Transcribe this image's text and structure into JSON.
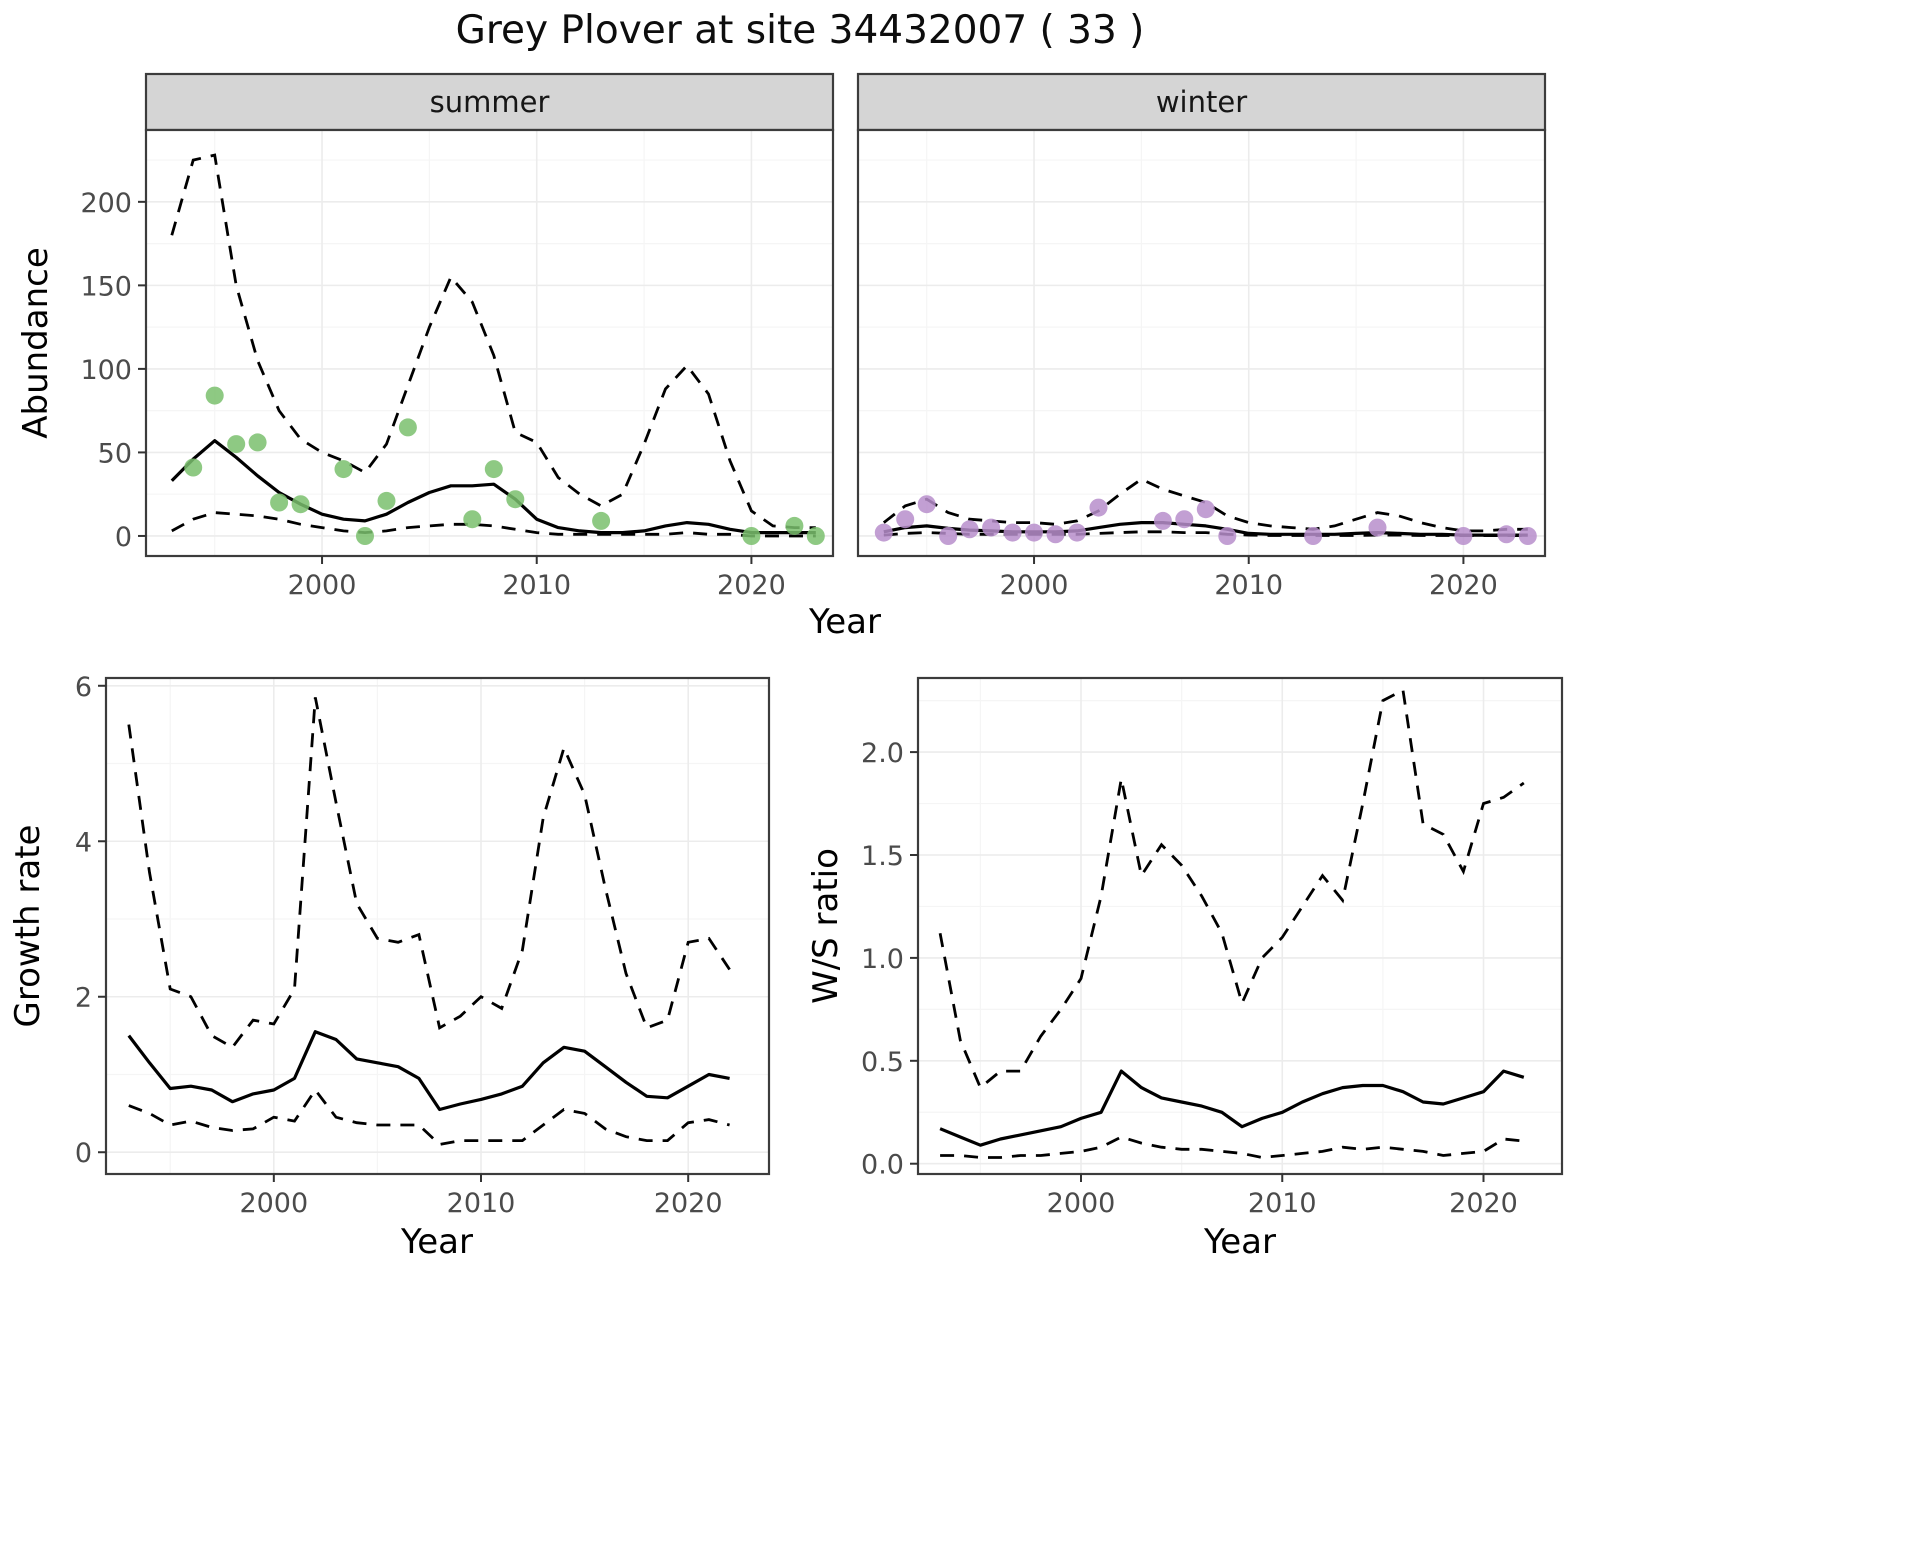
{
  "title": "Grey Plover at site 34432007 ( 33 )",
  "colors": {
    "summer_points": "#7abf6d",
    "winter_points": "#b78ecb",
    "line": "#000000",
    "strip_fill": "#d5d5d5",
    "grid_major": "#ececec",
    "grid_minor": "#f5f5f5",
    "border": "#3c3c3c",
    "tick_text": "#4b4b4b"
  },
  "chart_data": [
    {
      "id": "abundance",
      "type": "line",
      "title": "",
      "xlabel": "Year",
      "ylabel": "Abundance",
      "xlim": [
        1991.8,
        2023.8
      ],
      "ylim": [
        -12,
        243
      ],
      "xticks": [
        2000,
        2010,
        2020
      ],
      "xtick_labels": [
        "2000",
        "2010",
        "2020"
      ],
      "yticks": [
        0,
        50,
        100,
        150,
        200
      ],
      "ytick_labels": [
        "0",
        "50",
        "100",
        "150",
        "200"
      ],
      "grid": true,
      "legend": "none",
      "facets": [
        {
          "label": "summer",
          "point_color": "#7abf6d",
          "years": [
            1993,
            1994,
            1995,
            1996,
            1997,
            1998,
            1999,
            2000,
            2001,
            2002,
            2003,
            2004,
            2005,
            2006,
            2007,
            2008,
            2009,
            2010,
            2011,
            2012,
            2013,
            2014,
            2015,
            2016,
            2017,
            2018,
            2019,
            2020,
            2021,
            2022,
            2023
          ],
          "fit": [
            33,
            46,
            57,
            47,
            36,
            26,
            19,
            13,
            10,
            9,
            13,
            20,
            26,
            30,
            30,
            31,
            22,
            10,
            5,
            3,
            2,
            2,
            3,
            6,
            8,
            7,
            4,
            2,
            2,
            2,
            2
          ],
          "upper": [
            180,
            225,
            228,
            150,
            105,
            75,
            58,
            50,
            45,
            38,
            55,
            90,
            125,
            155,
            140,
            108,
            62,
            56,
            35,
            25,
            18,
            25,
            55,
            88,
            102,
            85,
            45,
            15,
            6,
            5,
            5
          ],
          "lower": [
            3,
            10,
            14,
            13,
            12,
            10,
            7,
            5,
            3,
            2,
            3,
            5,
            6,
            7,
            7,
            6,
            4,
            2,
            1,
            1,
            1,
            1,
            1,
            1,
            2,
            1,
            1,
            0,
            0,
            0,
            0
          ],
          "points_x": [
            1994,
            1995,
            1996,
            1997,
            1998,
            1999,
            2001,
            2002,
            2003,
            2004,
            2007,
            2008,
            2009,
            2013,
            2020,
            2022,
            2023
          ],
          "points_y": [
            41,
            84,
            55,
            56,
            20,
            19,
            40,
            0,
            21,
            65,
            10,
            40,
            22,
            9,
            0,
            6,
            0
          ]
        },
        {
          "label": "winter",
          "point_color": "#b78ecb",
          "years": [
            1993,
            1994,
            1995,
            1996,
            1997,
            1998,
            1999,
            2000,
            2001,
            2002,
            2003,
            2004,
            2005,
            2006,
            2007,
            2008,
            2009,
            2010,
            2011,
            2012,
            2013,
            2014,
            2015,
            2016,
            2017,
            2018,
            2019,
            2020,
            2021,
            2022,
            2023
          ],
          "fit": [
            2.5,
            5,
            6,
            4.5,
            3.5,
            3,
            2.5,
            2.5,
            2.5,
            3,
            5,
            7,
            8,
            8,
            7,
            6,
            4,
            1.5,
            1,
            1,
            1,
            1,
            1.5,
            2,
            1.5,
            1,
            1,
            0.5,
            0.5,
            0.5,
            0.5
          ],
          "upper": [
            8,
            18,
            22,
            14,
            10,
            9,
            8,
            8,
            7,
            9,
            15,
            25,
            34,
            28,
            24,
            20,
            12,
            8,
            6,
            5,
            4,
            6,
            10,
            14,
            12,
            8,
            5,
            3,
            3,
            4,
            4
          ],
          "lower": [
            0.5,
            1.5,
            2,
            1.5,
            1,
            1,
            1,
            1,
            1,
            1,
            1.5,
            2,
            2.5,
            2.5,
            2,
            2,
            1,
            0.5,
            0.3,
            0.3,
            0.3,
            0.3,
            0.3,
            0.5,
            0.5,
            0.3,
            0.3,
            0.2,
            0.2,
            0.2,
            0.2
          ],
          "points_x": [
            1993,
            1994,
            1995,
            1996,
            1997,
            1998,
            1999,
            2000,
            2001,
            2002,
            2003,
            2006,
            2007,
            2008,
            2009,
            2013,
            2016,
            2020,
            2022,
            2023
          ],
          "points_y": [
            2,
            10,
            19,
            0,
            4,
            5,
            2,
            2,
            1,
            2,
            17,
            9,
            10,
            16,
            0,
            0,
            5,
            0,
            1,
            0
          ]
        }
      ]
    },
    {
      "id": "growth_rate",
      "type": "line",
      "title": "",
      "xlabel": "Year",
      "ylabel": "Growth rate",
      "xlim": [
        1991.9,
        2023.9
      ],
      "ylim": [
        -0.28,
        6.1
      ],
      "xticks": [
        2000,
        2010,
        2020
      ],
      "xtick_labels": [
        "2000",
        "2010",
        "2020"
      ],
      "yticks": [
        0,
        2,
        4,
        6
      ],
      "ytick_labels": [
        "0",
        "2",
        "4",
        "6"
      ],
      "grid": true,
      "legend": "none",
      "years": [
        1993,
        1994,
        1995,
        1996,
        1997,
        1998,
        1999,
        2000,
        2001,
        2002,
        2003,
        2004,
        2005,
        2006,
        2007,
        2008,
        2009,
        2010,
        2011,
        2012,
        2013,
        2014,
        2015,
        2016,
        2017,
        2018,
        2019,
        2020,
        2021,
        2022
      ],
      "fit": [
        1.5,
        1.15,
        0.82,
        0.85,
        0.8,
        0.65,
        0.75,
        0.8,
        0.95,
        1.55,
        1.45,
        1.2,
        1.15,
        1.1,
        0.95,
        0.55,
        0.62,
        0.68,
        0.75,
        0.85,
        1.15,
        1.35,
        1.3,
        1.1,
        0.9,
        0.72,
        0.7,
        0.85,
        1.0,
        0.95
      ],
      "upper": [
        5.5,
        3.6,
        2.1,
        2.0,
        1.5,
        1.35,
        1.7,
        1.65,
        2.1,
        5.85,
        4.5,
        3.2,
        2.75,
        2.7,
        2.8,
        1.6,
        1.75,
        2.0,
        1.85,
        2.6,
        4.3,
        5.2,
        4.6,
        3.4,
        2.3,
        1.6,
        1.7,
        2.7,
        2.75,
        2.35
      ],
      "lower": [
        0.6,
        0.5,
        0.35,
        0.4,
        0.32,
        0.28,
        0.3,
        0.45,
        0.4,
        0.8,
        0.45,
        0.38,
        0.35,
        0.35,
        0.35,
        0.1,
        0.15,
        0.15,
        0.15,
        0.15,
        0.35,
        0.55,
        0.5,
        0.3,
        0.2,
        0.15,
        0.15,
        0.38,
        0.42,
        0.35
      ]
    },
    {
      "id": "ws_ratio",
      "type": "line",
      "title": "",
      "xlabel": "Year",
      "ylabel": "W/S ratio",
      "xlim": [
        1991.9,
        2023.9
      ],
      "ylim": [
        -0.05,
        2.36
      ],
      "xticks": [
        2000,
        2010,
        2020
      ],
      "xtick_labels": [
        "2000",
        "2010",
        "2020"
      ],
      "yticks": [
        0,
        0.5,
        1,
        1.5,
        2
      ],
      "ytick_labels": [
        "0.0",
        "0.5",
        "1.0",
        "1.5",
        "2.0"
      ],
      "grid": true,
      "legend": "none",
      "years": [
        1993,
        1994,
        1995,
        1996,
        1997,
        1998,
        1999,
        2000,
        2001,
        2002,
        2003,
        2004,
        2005,
        2006,
        2007,
        2008,
        2009,
        2010,
        2011,
        2012,
        2013,
        2014,
        2015,
        2016,
        2017,
        2018,
        2019,
        2020,
        2021,
        2022
      ],
      "fit": [
        0.17,
        0.13,
        0.09,
        0.12,
        0.14,
        0.16,
        0.18,
        0.22,
        0.25,
        0.45,
        0.37,
        0.32,
        0.3,
        0.28,
        0.25,
        0.18,
        0.22,
        0.25,
        0.3,
        0.34,
        0.37,
        0.38,
        0.38,
        0.35,
        0.3,
        0.29,
        0.32,
        0.35,
        0.45,
        0.42
      ],
      "upper": [
        1.12,
        0.6,
        0.37,
        0.45,
        0.45,
        0.62,
        0.75,
        0.9,
        1.3,
        1.87,
        1.4,
        1.55,
        1.45,
        1.3,
        1.12,
        0.78,
        1.0,
        1.1,
        1.25,
        1.4,
        1.28,
        1.75,
        2.25,
        2.3,
        1.65,
        1.6,
        1.42,
        1.75,
        1.78,
        1.85
      ],
      "lower": [
        0.04,
        0.04,
        0.03,
        0.03,
        0.04,
        0.04,
        0.05,
        0.06,
        0.08,
        0.13,
        0.1,
        0.08,
        0.07,
        0.07,
        0.06,
        0.05,
        0.03,
        0.04,
        0.05,
        0.06,
        0.08,
        0.07,
        0.08,
        0.07,
        0.06,
        0.04,
        0.05,
        0.06,
        0.12,
        0.11
      ]
    }
  ]
}
